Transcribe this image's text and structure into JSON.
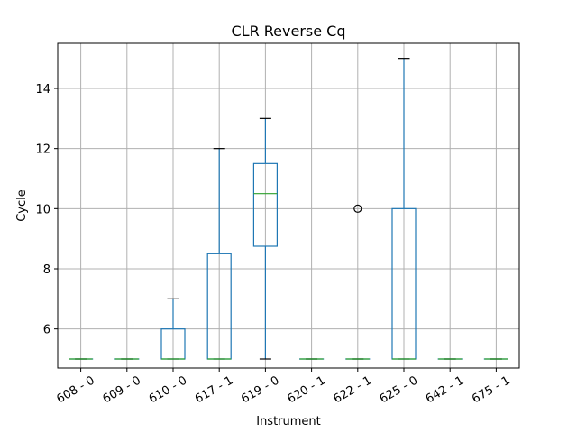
{
  "chart_data": {
    "type": "boxplot",
    "title": "CLR Reverse Cq",
    "xlabel": "Instrument",
    "ylabel": "Cycle",
    "ylim": [
      4.7,
      15.5
    ],
    "yticks": [
      6,
      8,
      10,
      12,
      14
    ],
    "grid": true,
    "colors": {
      "box": "#1f77b4",
      "median": "#2ca02c",
      "whisker_cap": "#000000",
      "grid": "#b0b0b0"
    },
    "categories": [
      "608 - 0",
      "609 - 0",
      "610 - 0",
      "617 - 1",
      "619 - 0",
      "620 - 1",
      "622 - 1",
      "625 - 0",
      "642 - 1",
      "675 - 1"
    ],
    "boxes": [
      {
        "min": 5,
        "q1": 5,
        "median": 5,
        "q3": 5,
        "max": 5,
        "outliers": []
      },
      {
        "min": 5,
        "q1": 5,
        "median": 5,
        "q3": 5,
        "max": 5,
        "outliers": []
      },
      {
        "min": 5,
        "q1": 5,
        "median": 5,
        "q3": 6,
        "max": 7,
        "outliers": []
      },
      {
        "min": 5,
        "q1": 5,
        "median": 5,
        "q3": 8.5,
        "max": 12,
        "outliers": []
      },
      {
        "min": 5,
        "q1": 8.75,
        "median": 10.5,
        "q3": 11.5,
        "max": 13,
        "outliers": []
      },
      {
        "min": 5,
        "q1": 5,
        "median": 5,
        "q3": 5,
        "max": 5,
        "outliers": []
      },
      {
        "min": 5,
        "q1": 5,
        "median": 5,
        "q3": 5,
        "max": 5,
        "outliers": [
          10
        ]
      },
      {
        "min": 5,
        "q1": 5,
        "median": 5,
        "q3": 10,
        "max": 15,
        "outliers": []
      },
      {
        "min": 5,
        "q1": 5,
        "median": 5,
        "q3": 5,
        "max": 5,
        "outliers": []
      },
      {
        "min": 5,
        "q1": 5,
        "median": 5,
        "q3": 5,
        "max": 5,
        "outliers": []
      }
    ]
  }
}
